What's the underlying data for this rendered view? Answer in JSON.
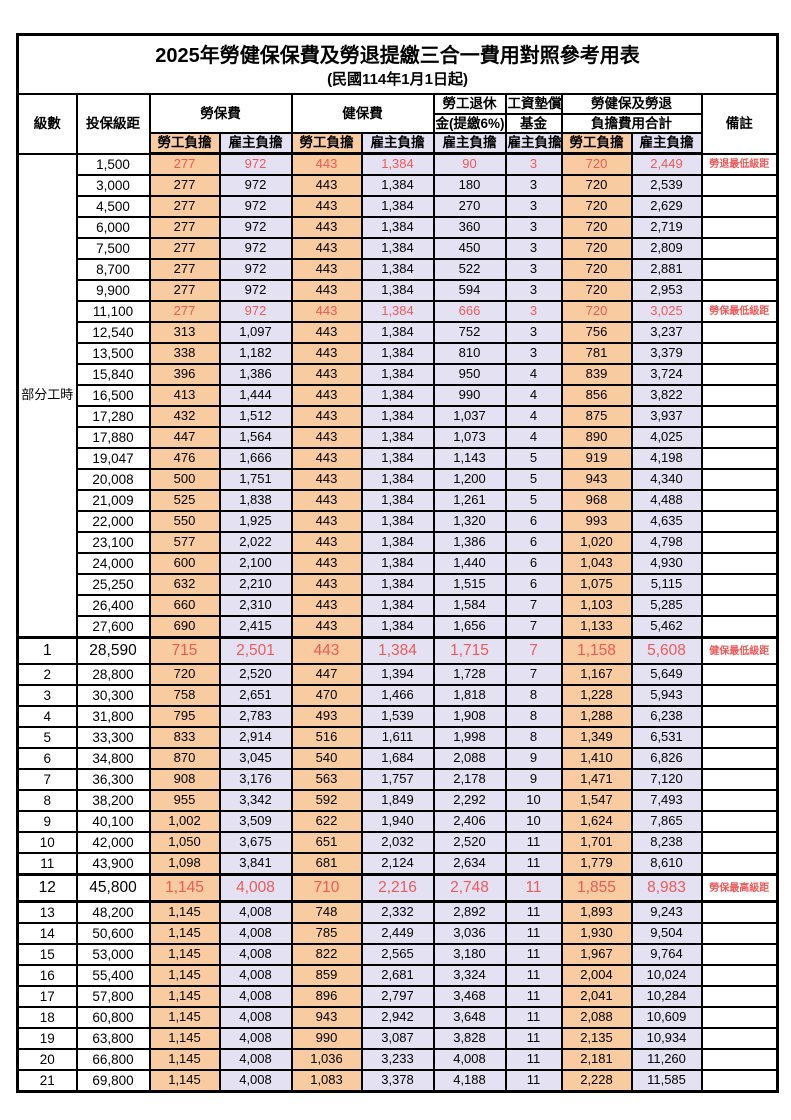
{
  "title": "2025年勞健保保費及勞退提繳三合一費用對照參考用表",
  "subtitle": "(民國114年1月1日起)",
  "colors": {
    "employee_bg": "#F8CBA0",
    "employer_bg": "#E4E2F2",
    "highlight_red": "#EF5A5A",
    "border": "#000000"
  },
  "header": {
    "grade": "級數",
    "bracket": "投保級距",
    "labor_ins": "勞保費",
    "health_ins": "健保費",
    "pension_line1": "勞工退休",
    "pension_line2": "金(提繳6%)",
    "wage_fund_line1": "工資墊償",
    "wage_fund_line2": "基金",
    "total_line1": "勞健保及勞退",
    "total_line2": "負擔費用合計",
    "remark": "備註",
    "employee_burden": "勞工負擔",
    "employer_burden": "雇主負擔"
  },
  "part_time_label": "部分工時",
  "part_time_rowspan": 23,
  "value_column_names": [
    "labor-employee",
    "labor-employer",
    "health-employee",
    "health-employer",
    "pension-employer",
    "wage-fund-employer",
    "total-employee",
    "total-employer"
  ],
  "value_column_styles": [
    "emp",
    "er",
    "emp",
    "er",
    "er",
    "er",
    "emp",
    "er"
  ],
  "rows": [
    {
      "grade": "",
      "bracket": "1,500",
      "values": [
        "277",
        "972",
        "443",
        "1,384",
        "90",
        "3",
        "720",
        "2,449"
      ],
      "remark": "勞退最低級距",
      "red": true,
      "big": false,
      "thick_top": false,
      "thick_bottom": false
    },
    {
      "grade": "",
      "bracket": "3,000",
      "values": [
        "277",
        "972",
        "443",
        "1,384",
        "180",
        "3",
        "720",
        "2,539"
      ],
      "remark": "",
      "red": false,
      "big": false,
      "thick_top": false,
      "thick_bottom": false
    },
    {
      "grade": "",
      "bracket": "4,500",
      "values": [
        "277",
        "972",
        "443",
        "1,384",
        "270",
        "3",
        "720",
        "2,629"
      ],
      "remark": "",
      "red": false,
      "big": false,
      "thick_top": false,
      "thick_bottom": false
    },
    {
      "grade": "",
      "bracket": "6,000",
      "values": [
        "277",
        "972",
        "443",
        "1,384",
        "360",
        "3",
        "720",
        "2,719"
      ],
      "remark": "",
      "red": false,
      "big": false,
      "thick_top": false,
      "thick_bottom": false
    },
    {
      "grade": "",
      "bracket": "7,500",
      "values": [
        "277",
        "972",
        "443",
        "1,384",
        "450",
        "3",
        "720",
        "2,809"
      ],
      "remark": "",
      "red": false,
      "big": false,
      "thick_top": false,
      "thick_bottom": false
    },
    {
      "grade": "",
      "bracket": "8,700",
      "values": [
        "277",
        "972",
        "443",
        "1,384",
        "522",
        "3",
        "720",
        "2,881"
      ],
      "remark": "",
      "red": false,
      "big": false,
      "thick_top": false,
      "thick_bottom": false
    },
    {
      "grade": "",
      "bracket": "9,900",
      "values": [
        "277",
        "972",
        "443",
        "1,384",
        "594",
        "3",
        "720",
        "2,953"
      ],
      "remark": "",
      "red": false,
      "big": false,
      "thick_top": false,
      "thick_bottom": false
    },
    {
      "grade": "",
      "bracket": "11,100",
      "values": [
        "277",
        "972",
        "443",
        "1,384",
        "666",
        "3",
        "720",
        "3,025"
      ],
      "remark": "勞保最低級距",
      "red": true,
      "big": false,
      "thick_top": false,
      "thick_bottom": false
    },
    {
      "grade": "",
      "bracket": "12,540",
      "values": [
        "313",
        "1,097",
        "443",
        "1,384",
        "752",
        "3",
        "756",
        "3,237"
      ],
      "remark": "",
      "red": false,
      "big": false,
      "thick_top": false,
      "thick_bottom": false
    },
    {
      "grade": "",
      "bracket": "13,500",
      "values": [
        "338",
        "1,182",
        "443",
        "1,384",
        "810",
        "3",
        "781",
        "3,379"
      ],
      "remark": "",
      "red": false,
      "big": false,
      "thick_top": false,
      "thick_bottom": false
    },
    {
      "grade": "",
      "bracket": "15,840",
      "values": [
        "396",
        "1,386",
        "443",
        "1,384",
        "950",
        "4",
        "839",
        "3,724"
      ],
      "remark": "",
      "red": false,
      "big": false,
      "thick_top": false,
      "thick_bottom": false
    },
    {
      "grade": "",
      "bracket": "16,500",
      "values": [
        "413",
        "1,444",
        "443",
        "1,384",
        "990",
        "4",
        "856",
        "3,822"
      ],
      "remark": "",
      "red": false,
      "big": false,
      "thick_top": false,
      "thick_bottom": false
    },
    {
      "grade": "",
      "bracket": "17,280",
      "values": [
        "432",
        "1,512",
        "443",
        "1,384",
        "1,037",
        "4",
        "875",
        "3,937"
      ],
      "remark": "",
      "red": false,
      "big": false,
      "thick_top": false,
      "thick_bottom": false
    },
    {
      "grade": "",
      "bracket": "17,880",
      "values": [
        "447",
        "1,564",
        "443",
        "1,384",
        "1,073",
        "4",
        "890",
        "4,025"
      ],
      "remark": "",
      "red": false,
      "big": false,
      "thick_top": false,
      "thick_bottom": false
    },
    {
      "grade": "",
      "bracket": "19,047",
      "values": [
        "476",
        "1,666",
        "443",
        "1,384",
        "1,143",
        "5",
        "919",
        "4,198"
      ],
      "remark": "",
      "red": false,
      "big": false,
      "thick_top": false,
      "thick_bottom": false
    },
    {
      "grade": "",
      "bracket": "20,008",
      "values": [
        "500",
        "1,751",
        "443",
        "1,384",
        "1,200",
        "5",
        "943",
        "4,340"
      ],
      "remark": "",
      "red": false,
      "big": false,
      "thick_top": false,
      "thick_bottom": false
    },
    {
      "grade": "",
      "bracket": "21,009",
      "values": [
        "525",
        "1,838",
        "443",
        "1,384",
        "1,261",
        "5",
        "968",
        "4,488"
      ],
      "remark": "",
      "red": false,
      "big": false,
      "thick_top": false,
      "thick_bottom": false
    },
    {
      "grade": "",
      "bracket": "22,000",
      "values": [
        "550",
        "1,925",
        "443",
        "1,384",
        "1,320",
        "6",
        "993",
        "4,635"
      ],
      "remark": "",
      "red": false,
      "big": false,
      "thick_top": false,
      "thick_bottom": false
    },
    {
      "grade": "",
      "bracket": "23,100",
      "values": [
        "577",
        "2,022",
        "443",
        "1,384",
        "1,386",
        "6",
        "1,020",
        "4,798"
      ],
      "remark": "",
      "red": false,
      "big": false,
      "thick_top": false,
      "thick_bottom": false
    },
    {
      "grade": "",
      "bracket": "24,000",
      "values": [
        "600",
        "2,100",
        "443",
        "1,384",
        "1,440",
        "6",
        "1,043",
        "4,930"
      ],
      "remark": "",
      "red": false,
      "big": false,
      "thick_top": false,
      "thick_bottom": false
    },
    {
      "grade": "",
      "bracket": "25,250",
      "values": [
        "632",
        "2,210",
        "443",
        "1,384",
        "1,515",
        "6",
        "1,075",
        "5,115"
      ],
      "remark": "",
      "red": false,
      "big": false,
      "thick_top": false,
      "thick_bottom": false
    },
    {
      "grade": "",
      "bracket": "26,400",
      "values": [
        "660",
        "2,310",
        "443",
        "1,384",
        "1,584",
        "7",
        "1,103",
        "5,285"
      ],
      "remark": "",
      "red": false,
      "big": false,
      "thick_top": false,
      "thick_bottom": false
    },
    {
      "grade": "",
      "bracket": "27,600",
      "values": [
        "690",
        "2,415",
        "443",
        "1,384",
        "1,656",
        "7",
        "1,133",
        "5,462"
      ],
      "remark": "",
      "red": false,
      "big": false,
      "thick_top": false,
      "thick_bottom": false
    },
    {
      "grade": "1",
      "bracket": "28,590",
      "values": [
        "715",
        "2,501",
        "443",
        "1,384",
        "1,715",
        "7",
        "1,158",
        "5,608"
      ],
      "remark": "健保最低級距",
      "red": true,
      "big": true,
      "thick_top": true,
      "thick_bottom": false
    },
    {
      "grade": "2",
      "bracket": "28,800",
      "values": [
        "720",
        "2,520",
        "447",
        "1,394",
        "1,728",
        "7",
        "1,167",
        "5,649"
      ],
      "remark": "",
      "red": false,
      "big": false,
      "thick_top": false,
      "thick_bottom": false
    },
    {
      "grade": "3",
      "bracket": "30,300",
      "values": [
        "758",
        "2,651",
        "470",
        "1,466",
        "1,818",
        "8",
        "1,228",
        "5,943"
      ],
      "remark": "",
      "red": false,
      "big": false,
      "thick_top": false,
      "thick_bottom": false
    },
    {
      "grade": "4",
      "bracket": "31,800",
      "values": [
        "795",
        "2,783",
        "493",
        "1,539",
        "1,908",
        "8",
        "1,288",
        "6,238"
      ],
      "remark": "",
      "red": false,
      "big": false,
      "thick_top": false,
      "thick_bottom": false
    },
    {
      "grade": "5",
      "bracket": "33,300",
      "values": [
        "833",
        "2,914",
        "516",
        "1,611",
        "1,998",
        "8",
        "1,349",
        "6,531"
      ],
      "remark": "",
      "red": false,
      "big": false,
      "thick_top": false,
      "thick_bottom": false
    },
    {
      "grade": "6",
      "bracket": "34,800",
      "values": [
        "870",
        "3,045",
        "540",
        "1,684",
        "2,088",
        "9",
        "1,410",
        "6,826"
      ],
      "remark": "",
      "red": false,
      "big": false,
      "thick_top": false,
      "thick_bottom": false
    },
    {
      "grade": "7",
      "bracket": "36,300",
      "values": [
        "908",
        "3,176",
        "563",
        "1,757",
        "2,178",
        "9",
        "1,471",
        "7,120"
      ],
      "remark": "",
      "red": false,
      "big": false,
      "thick_top": false,
      "thick_bottom": false
    },
    {
      "grade": "8",
      "bracket": "38,200",
      "values": [
        "955",
        "3,342",
        "592",
        "1,849",
        "2,292",
        "10",
        "1,547",
        "7,493"
      ],
      "remark": "",
      "red": false,
      "big": false,
      "thick_top": false,
      "thick_bottom": false
    },
    {
      "grade": "9",
      "bracket": "40,100",
      "values": [
        "1,002",
        "3,509",
        "622",
        "1,940",
        "2,406",
        "10",
        "1,624",
        "7,865"
      ],
      "remark": "",
      "red": false,
      "big": false,
      "thick_top": false,
      "thick_bottom": false
    },
    {
      "grade": "10",
      "bracket": "42,000",
      "values": [
        "1,050",
        "3,675",
        "651",
        "2,032",
        "2,520",
        "11",
        "1,701",
        "8,238"
      ],
      "remark": "",
      "red": false,
      "big": false,
      "thick_top": false,
      "thick_bottom": false
    },
    {
      "grade": "11",
      "bracket": "43,900",
      "values": [
        "1,098",
        "3,841",
        "681",
        "2,124",
        "2,634",
        "11",
        "1,779",
        "8,610"
      ],
      "remark": "",
      "red": false,
      "big": false,
      "thick_top": false,
      "thick_bottom": false
    },
    {
      "grade": "12",
      "bracket": "45,800",
      "values": [
        "1,145",
        "4,008",
        "710",
        "2,216",
        "2,748",
        "11",
        "1,855",
        "8,983"
      ],
      "remark": "勞保最高級距",
      "red": true,
      "big": true,
      "thick_top": true,
      "thick_bottom": true
    },
    {
      "grade": "13",
      "bracket": "48,200",
      "values": [
        "1,145",
        "4,008",
        "748",
        "2,332",
        "2,892",
        "11",
        "1,893",
        "9,243"
      ],
      "remark": "",
      "red": false,
      "big": false,
      "thick_top": false,
      "thick_bottom": false
    },
    {
      "grade": "14",
      "bracket": "50,600",
      "values": [
        "1,145",
        "4,008",
        "785",
        "2,449",
        "3,036",
        "11",
        "1,930",
        "9,504"
      ],
      "remark": "",
      "red": false,
      "big": false,
      "thick_top": false,
      "thick_bottom": false
    },
    {
      "grade": "15",
      "bracket": "53,000",
      "values": [
        "1,145",
        "4,008",
        "822",
        "2,565",
        "3,180",
        "11",
        "1,967",
        "9,764"
      ],
      "remark": "",
      "red": false,
      "big": false,
      "thick_top": false,
      "thick_bottom": false
    },
    {
      "grade": "16",
      "bracket": "55,400",
      "values": [
        "1,145",
        "4,008",
        "859",
        "2,681",
        "3,324",
        "11",
        "2,004",
        "10,024"
      ],
      "remark": "",
      "red": false,
      "big": false,
      "thick_top": false,
      "thick_bottom": false
    },
    {
      "grade": "17",
      "bracket": "57,800",
      "values": [
        "1,145",
        "4,008",
        "896",
        "2,797",
        "3,468",
        "11",
        "2,041",
        "10,284"
      ],
      "remark": "",
      "red": false,
      "big": false,
      "thick_top": false,
      "thick_bottom": false
    },
    {
      "grade": "18",
      "bracket": "60,800",
      "values": [
        "1,145",
        "4,008",
        "943",
        "2,942",
        "3,648",
        "11",
        "2,088",
        "10,609"
      ],
      "remark": "",
      "red": false,
      "big": false,
      "thick_top": false,
      "thick_bottom": false
    },
    {
      "grade": "19",
      "bracket": "63,800",
      "values": [
        "1,145",
        "4,008",
        "990",
        "3,087",
        "3,828",
        "11",
        "2,135",
        "10,934"
      ],
      "remark": "",
      "red": false,
      "big": false,
      "thick_top": false,
      "thick_bottom": false
    },
    {
      "grade": "20",
      "bracket": "66,800",
      "values": [
        "1,145",
        "4,008",
        "1,036",
        "3,233",
        "4,008",
        "11",
        "2,181",
        "11,260"
      ],
      "remark": "",
      "red": false,
      "big": false,
      "thick_top": false,
      "thick_bottom": false
    },
    {
      "grade": "21",
      "bracket": "69,800",
      "values": [
        "1,145",
        "4,008",
        "1,083",
        "3,378",
        "4,188",
        "11",
        "2,228",
        "11,585"
      ],
      "remark": "",
      "red": false,
      "big": false,
      "thick_top": false,
      "thick_bottom": false
    }
  ]
}
